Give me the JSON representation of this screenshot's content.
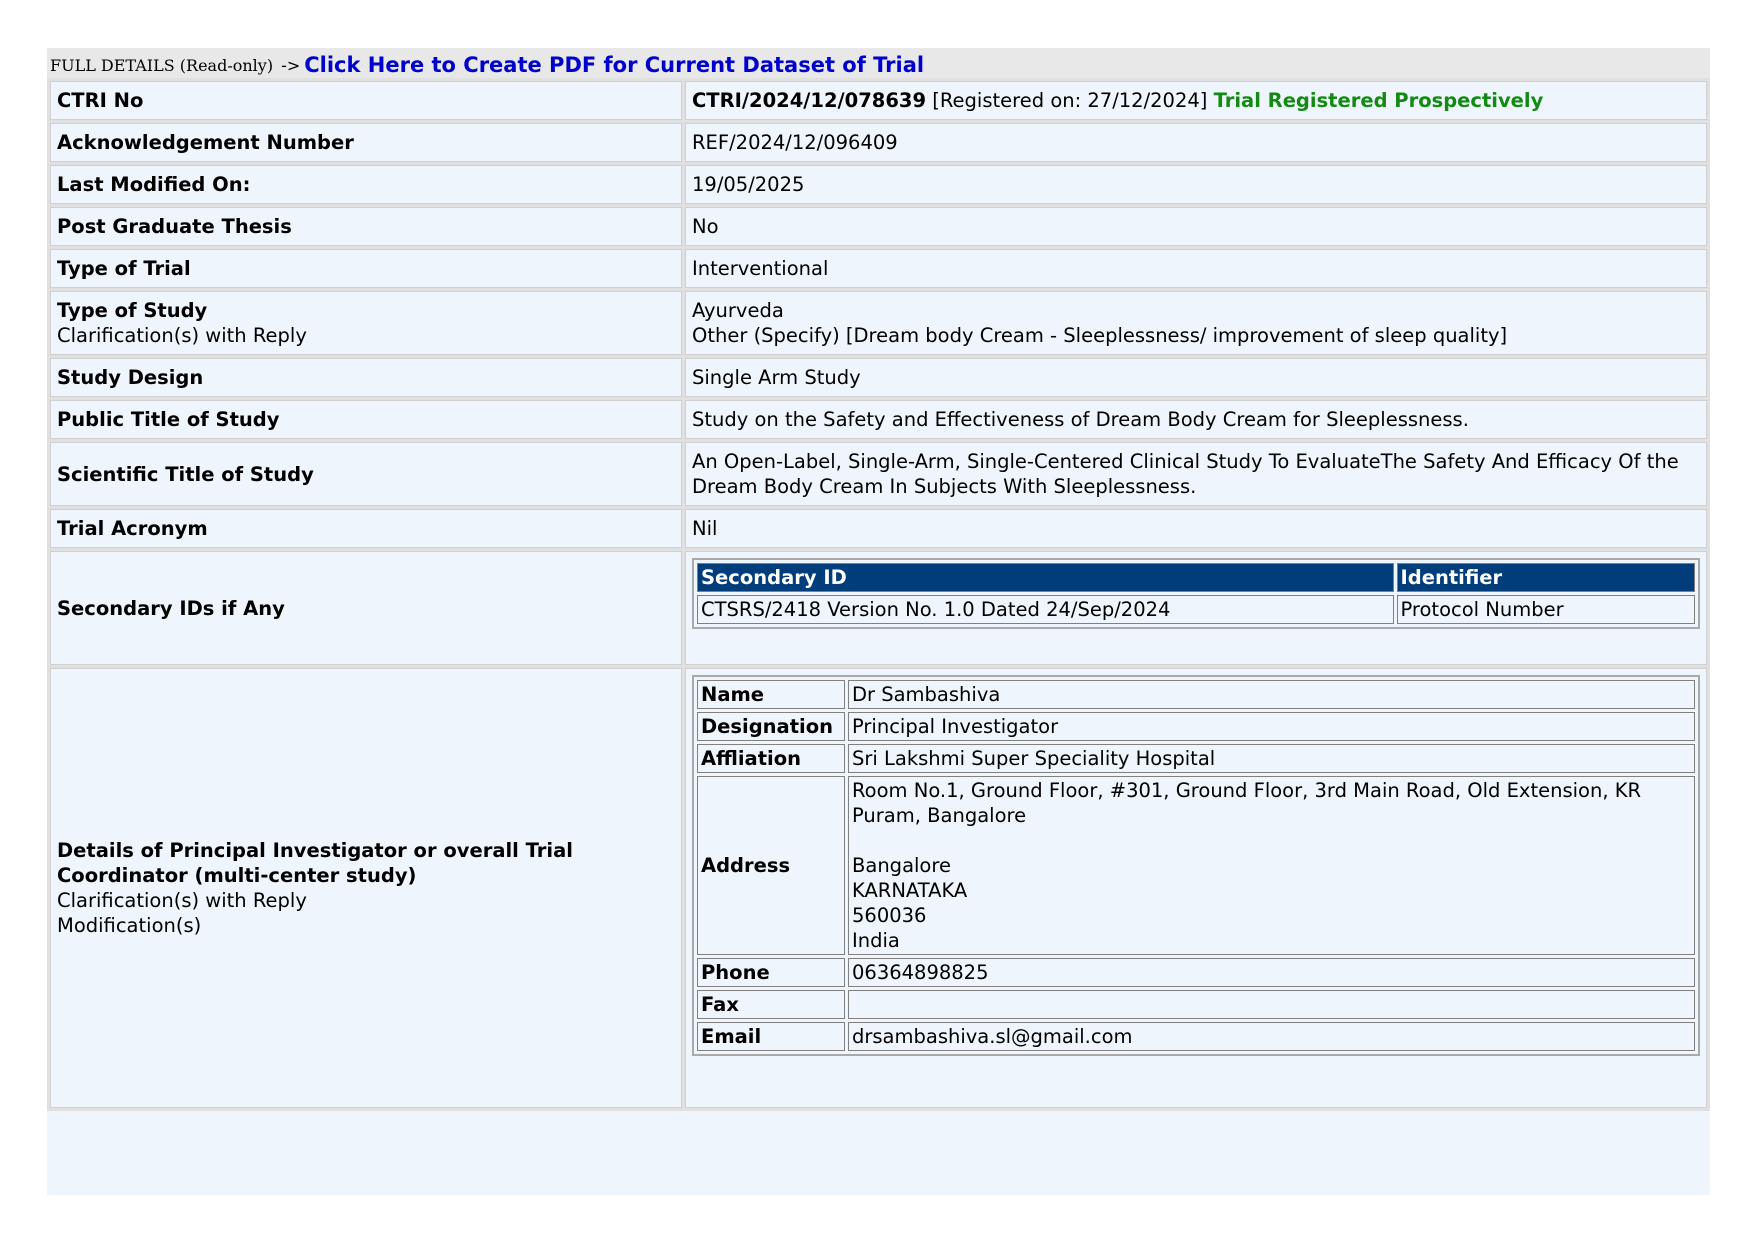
{
  "header": {
    "label": "FULL DETAILS (Read-only)",
    "arrow": "->",
    "pdf_link": "Click Here to Create PDF for Current Dataset of Trial"
  },
  "rows": {
    "ctri": {
      "label": "CTRI No",
      "number": "CTRI/2024/12/078639",
      "registered": "[Registered on: 27/12/2024]",
      "status": "Trial Registered Prospectively"
    },
    "ack": {
      "label": "Acknowledgement Number",
      "value": "REF/2024/12/096409"
    },
    "modified": {
      "label": "Last Modified On:",
      "value": "19/05/2025"
    },
    "pg": {
      "label": "Post Graduate Thesis",
      "value": "No"
    },
    "trial_type": {
      "label": "Type of Trial",
      "value": "Interventional"
    },
    "study_type": {
      "label": "Type of Study",
      "sub": "Clarification(s) with Reply",
      "value1": "Ayurveda",
      "value2": "Other (Specify) [Dream body Cream - Sleeplessness/ improvement of sleep quality]"
    },
    "design": {
      "label": "Study Design",
      "value": "Single Arm Study"
    },
    "public_title": {
      "label": "Public Title of Study",
      "value": "Study on the Safety and Effectiveness of Dream Body Cream for Sleeplessness."
    },
    "sci_title": {
      "label": "Scientific Title of Study",
      "value": "An Open-Label, Single-Arm, Single-Centered Clinical Study To EvaluateThe Safety And Efficacy Of the Dream Body Cream In Subjects With Sleeplessness."
    },
    "acronym": {
      "label": "Trial Acronym",
      "value": "Nil"
    },
    "secondary": {
      "label": "Secondary IDs if Any",
      "headers": [
        "Secondary ID",
        "Identifier"
      ],
      "rows": [
        [
          "CTSRS/2418 Version No. 1.0 Dated 24/Sep/2024",
          "Protocol Number"
        ]
      ]
    },
    "pi": {
      "label": "Details of Principal Investigator or overall Trial Coordinator (multi-center study)",
      "sub1": "Clarification(s) with Reply",
      "sub2": "Modification(s)",
      "fields": {
        "name_label": "Name",
        "name": "Dr Sambashiva",
        "designation_label": "Designation",
        "designation": "Principal Investigator",
        "affiliation_label": "Affliation",
        "affiliation": "Sri Lakshmi Super Speciality Hospital",
        "address_label": "Address",
        "address1": "Room No.1, Ground Floor, #301, Ground Floor, 3rd Main Road, Old Extension, KR Puram, Bangalore",
        "address_city": "Bangalore",
        "address_state": "KARNATAKA",
        "address_pin": "560036",
        "address_country": "India",
        "phone_label": "Phone",
        "phone": "06364898825",
        "fax_label": "Fax",
        "fax": "",
        "email_label": "Email",
        "email": "drsambashiva.sl@gmail.com"
      }
    }
  }
}
